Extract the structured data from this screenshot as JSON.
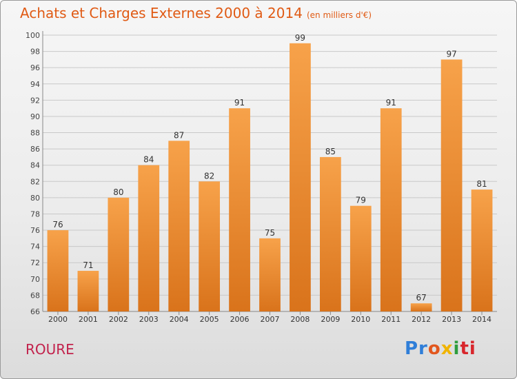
{
  "header": {
    "title": "Achats et Charges Externes 2000 à 2014",
    "subtitle": "(en milliers d'€)"
  },
  "footer": {
    "commune": "ROURE",
    "logo": {
      "p1": "Pr",
      "p2": "o",
      "p3": "x",
      "p4": "i",
      "p5": "ti"
    }
  },
  "colors": {
    "bar": "#f0922e",
    "title": "#e05a14",
    "commune": "#c2224c",
    "grid": "#c8c8c8"
  },
  "chart_data": {
    "type": "bar",
    "title": "Achats et Charges Externes 2000 à 2014",
    "subtitle": "(en milliers d'€)",
    "categories": [
      "2000",
      "2001",
      "2002",
      "2003",
      "2004",
      "2005",
      "2006",
      "2007",
      "2008",
      "2009",
      "2010",
      "2011",
      "2012",
      "2013",
      "2014"
    ],
    "values": [
      76,
      71,
      80,
      84,
      87,
      82,
      91,
      75,
      99,
      85,
      79,
      91,
      67,
      97,
      81
    ],
    "ylim": [
      66,
      100
    ],
    "yticks": [
      66,
      68,
      70,
      72,
      74,
      76,
      78,
      80,
      82,
      84,
      86,
      88,
      90,
      92,
      94,
      96,
      98,
      100
    ],
    "grid": true
  }
}
